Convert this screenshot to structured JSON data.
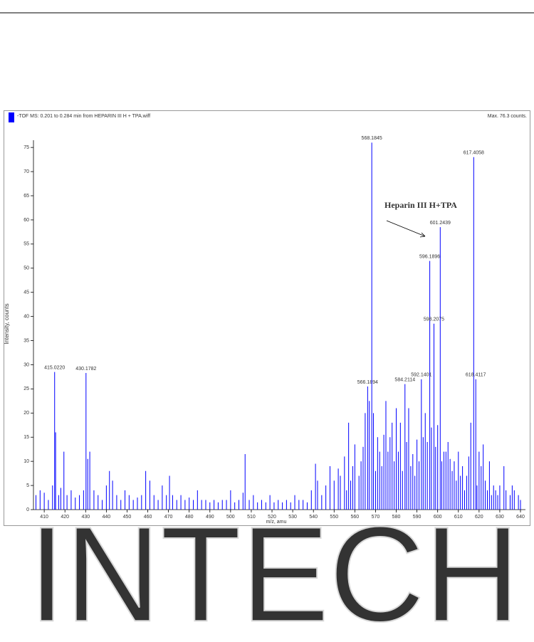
{
  "chart_data": {
    "type": "stick",
    "header": "-TOF MS: 0.201 to 0.284 min from HEPARIN III H + TPA.wiff",
    "max_label": "Max. 76.3 counts.",
    "x_label": "m/z, amu",
    "y_label": "Intensity, counts",
    "annotation": "Heparin III H+TPA",
    "xlim": [
      404.8,
      642.4
    ],
    "ylim": [
      0,
      76.5
    ],
    "xticks": [
      410,
      420,
      430,
      440,
      450,
      460,
      470,
      480,
      490,
      500,
      510,
      520,
      530,
      540,
      550,
      560,
      570,
      580,
      590,
      600,
      610,
      620,
      630,
      640
    ],
    "yticks": [
      0,
      5,
      10,
      15,
      20,
      25,
      30,
      35,
      40,
      45,
      50,
      55,
      60,
      65,
      70,
      75
    ],
    "series": [
      {
        "color": "#0000ff",
        "x": [
          406,
          408,
          410,
          412,
          414,
          415.5,
          417,
          418,
          419.5,
          421,
          423,
          425,
          427,
          429,
          431,
          432,
          434,
          436,
          438,
          440,
          441.5,
          443,
          445,
          447,
          449,
          451,
          453,
          455,
          457,
          459,
          461,
          463,
          465,
          467,
          469,
          470.5,
          472,
          474,
          476,
          478,
          480,
          482,
          484,
          486,
          488,
          490,
          492,
          494,
          496,
          498,
          500,
          502,
          504,
          506,
          507,
          509,
          511,
          513,
          515,
          517,
          519,
          521,
          523,
          525,
          527,
          529,
          531,
          533,
          535,
          537,
          539,
          541,
          542,
          544,
          546,
          548,
          550,
          552,
          553,
          555,
          556,
          557,
          558,
          559,
          560,
          562,
          563,
          564,
          565,
          567,
          569,
          570,
          571,
          572,
          573,
          574,
          575,
          576,
          577,
          578,
          579,
          580,
          581,
          582,
          583,
          585,
          586,
          587,
          588,
          589,
          590,
          591,
          593,
          594,
          595,
          597,
          599,
          600,
          602,
          603,
          604,
          605,
          606,
          607,
          608,
          609,
          610,
          611,
          612,
          613,
          614,
          615,
          616,
          619,
          620,
          621,
          622,
          623,
          624,
          625,
          626,
          627,
          628,
          629,
          630,
          632,
          633,
          635,
          636,
          637,
          639,
          640
        ],
        "values": [
          3,
          4,
          3.5,
          2,
          5,
          16,
          3,
          4.5,
          12,
          3,
          4,
          2.5,
          3,
          4,
          10.5,
          12,
          4,
          3,
          2,
          5,
          8,
          6,
          3,
          2,
          4,
          3,
          2,
          2.5,
          3,
          8,
          6,
          3,
          2,
          5,
          3,
          7,
          3,
          2,
          3,
          2,
          2.5,
          2,
          4,
          2,
          2,
          1.5,
          2,
          1.5,
          2,
          2,
          4,
          1.5,
          2,
          3.5,
          11.5,
          2,
          3,
          1.5,
          2,
          1.5,
          3,
          1.5,
          2,
          1.5,
          2,
          1.5,
          3,
          2,
          2,
          1.5,
          4,
          9.5,
          6,
          3,
          5,
          9,
          6,
          8.5,
          7,
          11,
          4,
          18,
          6,
          9,
          13.5,
          7,
          10,
          13,
          20,
          22.5,
          20,
          8,
          15,
          12,
          9,
          15.5,
          22.5,
          12,
          15,
          18,
          10,
          21,
          12,
          18,
          8,
          14,
          21,
          9,
          11.5,
          7,
          14.5,
          10,
          15,
          20,
          14,
          17,
          13,
          17.5,
          10,
          12,
          12,
          14,
          10.5,
          8,
          10,
          6,
          12,
          7,
          9,
          4,
          7,
          11,
          18,
          5,
          12,
          9,
          13.5,
          6,
          4,
          10,
          3,
          5,
          4,
          3,
          5,
          9,
          4,
          3,
          5,
          4,
          3,
          2
        ]
      }
    ],
    "peaks": [
      {
        "x": 415.022,
        "y": 28.5,
        "label": "415.0220"
      },
      {
        "x": 430.1782,
        "y": 28.3,
        "label": "430.1782"
      },
      {
        "x": 566.1894,
        "y": 25.5,
        "label": "566.1894"
      },
      {
        "x": 568.1845,
        "y": 76,
        "label": "568.1845"
      },
      {
        "x": 584.2114,
        "y": 26,
        "label": "584.2114"
      },
      {
        "x": 592.1401,
        "y": 27,
        "label": "592.1401"
      },
      {
        "x": 596.1896,
        "y": 51.5,
        "label": "596.1896"
      },
      {
        "x": 598.2075,
        "y": 38.5,
        "label": "598.2075"
      },
      {
        "x": 601.2439,
        "y": 58.5,
        "label": "601.2439"
      },
      {
        "x": 617.4058,
        "y": 73,
        "label": "617.4058"
      },
      {
        "x": 618.4117,
        "y": 27,
        "label": "618.4117"
      }
    ]
  },
  "watermark": "INTECH"
}
